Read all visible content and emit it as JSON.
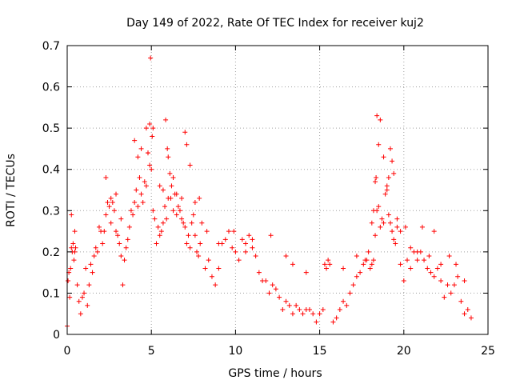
{
  "chart_data": {
    "type": "scatter",
    "title": "Day 149 of 2022, Rate Of TEC Index for receiver kuj2",
    "xlabel": "GPS time / hours",
    "ylabel": "ROTI / TECUs",
    "xlim": [
      0,
      25
    ],
    "ylim": [
      0,
      0.7
    ],
    "xticks": [
      0,
      5,
      10,
      15,
      20,
      25
    ],
    "xtick_labels": [
      "0",
      "5",
      "10",
      "15",
      "20",
      "25"
    ],
    "yticks": [
      0,
      0.1,
      0.2,
      0.3,
      0.4,
      0.5,
      0.6,
      0.7
    ],
    "ytick_labels": [
      "0",
      "0.1",
      "0.2",
      "0.3",
      "0.4",
      "0.5",
      "0.6",
      "0.7"
    ],
    "grid": true,
    "marker": "plus",
    "color": "#ff0000",
    "series": [
      {
        "name": "ROTI",
        "x": [
          0.0,
          0.05,
          0.1,
          0.15,
          0.2,
          0.25,
          0.3,
          0.35,
          0.4,
          0.45,
          0.5,
          0.6,
          0.7,
          0.8,
          0.9,
          1.0,
          1.1,
          1.2,
          1.3,
          1.4,
          1.5,
          1.6,
          1.7,
          1.8,
          1.9,
          2.0,
          2.1,
          2.2,
          2.3,
          2.4,
          2.5,
          2.6,
          2.7,
          2.8,
          2.9,
          3.0,
          3.1,
          3.2,
          3.3,
          3.4,
          3.5,
          3.6,
          3.7,
          3.8,
          3.9,
          4.0,
          4.1,
          4.2,
          4.3,
          4.4,
          4.5,
          4.6,
          4.7,
          4.8,
          4.9,
          5.0,
          5.1,
          5.2,
          5.3,
          5.4,
          5.5,
          5.6,
          5.7,
          5.8,
          5.9,
          6.0,
          6.1,
          6.2,
          6.3,
          6.4,
          6.5,
          6.6,
          6.7,
          6.8,
          6.9,
          7.0,
          7.1,
          7.2,
          7.3,
          7.4,
          7.5,
          7.6,
          7.7,
          7.8,
          7.9,
          8.0,
          8.2,
          8.4,
          8.6,
          8.8,
          9.0,
          9.2,
          9.4,
          9.6,
          9.8,
          10.0,
          10.2,
          10.4,
          10.6,
          10.8,
          11.0,
          11.2,
          11.4,
          11.6,
          11.8,
          12.0,
          12.2,
          12.4,
          12.6,
          12.8,
          13.0,
          13.2,
          13.4,
          13.6,
          13.8,
          14.0,
          14.2,
          14.4,
          14.6,
          14.8,
          15.0,
          15.2,
          15.4,
          15.6,
          15.8,
          16.0,
          16.2,
          16.4,
          16.6,
          16.8,
          17.0,
          17.2,
          17.4,
          17.6,
          17.8,
          18.0,
          18.1,
          18.2,
          18.3,
          18.4,
          18.5,
          18.6,
          18.7,
          18.8,
          18.9,
          19.0,
          19.1,
          19.2,
          19.3,
          19.4,
          19.5,
          19.6,
          19.8,
          20.0,
          20.2,
          20.4,
          20.6,
          20.8,
          21.0,
          21.2,
          21.4,
          21.6,
          21.8,
          22.0,
          22.2,
          22.4,
          22.6,
          22.8,
          23.0,
          23.2,
          23.4,
          23.6,
          23.8,
          24.0,
          0.25,
          0.45,
          2.3,
          2.6,
          2.9,
          3.2,
          4.0,
          4.2,
          4.4,
          4.7,
          4.8,
          4.9,
          4.95,
          5.05,
          5.1,
          5.5,
          5.7,
          5.85,
          5.95,
          6.0,
          6.15,
          6.3,
          6.5,
          6.8,
          7.0,
          7.1,
          7.3,
          7.6,
          7.85,
          8.3,
          9.0,
          9.9,
          10.6,
          11.0,
          12.1,
          13.0,
          13.4,
          14.2,
          15.3,
          15.5,
          16.4,
          17.2,
          17.7,
          17.9,
          18.1,
          18.2,
          18.3,
          18.35,
          18.4,
          18.5,
          18.6,
          18.8,
          19.0,
          19.1,
          19.2,
          19.3,
          19.4,
          19.6,
          19.8,
          20.1,
          20.4,
          20.8,
          21.1,
          21.5,
          21.8,
          22.2,
          22.7,
          23.1,
          23.6
        ],
        "y": [
          0.02,
          0.13,
          0.15,
          0.09,
          0.16,
          0.29,
          0.2,
          0.22,
          0.18,
          0.2,
          0.21,
          0.12,
          0.08,
          0.05,
          0.09,
          0.1,
          0.16,
          0.07,
          0.12,
          0.17,
          0.15,
          0.19,
          0.21,
          0.2,
          0.26,
          0.25,
          0.22,
          0.25,
          0.29,
          0.32,
          0.31,
          0.27,
          0.32,
          0.3,
          0.25,
          0.24,
          0.22,
          0.19,
          0.12,
          0.18,
          0.21,
          0.23,
          0.26,
          0.3,
          0.29,
          0.32,
          0.35,
          0.31,
          0.38,
          0.34,
          0.32,
          0.37,
          0.36,
          0.44,
          0.41,
          0.4,
          0.3,
          0.28,
          0.22,
          0.26,
          0.24,
          0.25,
          0.27,
          0.31,
          0.28,
          0.33,
          0.39,
          0.36,
          0.3,
          0.34,
          0.29,
          0.31,
          0.3,
          0.28,
          0.27,
          0.26,
          0.22,
          0.24,
          0.21,
          0.27,
          0.29,
          0.24,
          0.2,
          0.19,
          0.22,
          0.27,
          0.16,
          0.18,
          0.14,
          0.12,
          0.16,
          0.22,
          0.23,
          0.25,
          0.21,
          0.2,
          0.18,
          0.23,
          0.22,
          0.24,
          0.21,
          0.19,
          0.15,
          0.13,
          0.13,
          0.1,
          0.12,
          0.11,
          0.09,
          0.06,
          0.08,
          0.07,
          0.05,
          0.07,
          0.06,
          0.05,
          0.06,
          0.06,
          0.05,
          0.03,
          0.05,
          0.06,
          0.16,
          0.17,
          0.03,
          0.04,
          0.06,
          0.08,
          0.07,
          0.1,
          0.12,
          0.14,
          0.15,
          0.17,
          0.18,
          0.16,
          0.17,
          0.18,
          0.24,
          0.3,
          0.31,
          0.26,
          0.28,
          0.27,
          0.34,
          0.35,
          0.29,
          0.27,
          0.25,
          0.23,
          0.22,
          0.26,
          0.17,
          0.13,
          0.18,
          0.16,
          0.2,
          0.18,
          0.2,
          0.18,
          0.16,
          0.15,
          0.14,
          0.16,
          0.13,
          0.09,
          0.12,
          0.1,
          0.12,
          0.14,
          0.08,
          0.05,
          0.06,
          0.04,
          0.21,
          0.25,
          0.38,
          0.33,
          0.34,
          0.28,
          0.47,
          0.43,
          0.45,
          0.5,
          0.44,
          0.51,
          0.67,
          0.48,
          0.5,
          0.36,
          0.35,
          0.52,
          0.45,
          0.43,
          0.33,
          0.38,
          0.34,
          0.33,
          0.49,
          0.46,
          0.41,
          0.32,
          0.33,
          0.25,
          0.22,
          0.25,
          0.2,
          0.23,
          0.24,
          0.19,
          0.17,
          0.15,
          0.17,
          0.18,
          0.16,
          0.19,
          0.18,
          0.2,
          0.27,
          0.3,
          0.37,
          0.38,
          0.53,
          0.46,
          0.52,
          0.43,
          0.36,
          0.38,
          0.45,
          0.42,
          0.39,
          0.28,
          0.25,
          0.26,
          0.21,
          0.2,
          0.26,
          0.19,
          0.25,
          0.17,
          0.19,
          0.17,
          0.13
        ]
      }
    ]
  }
}
